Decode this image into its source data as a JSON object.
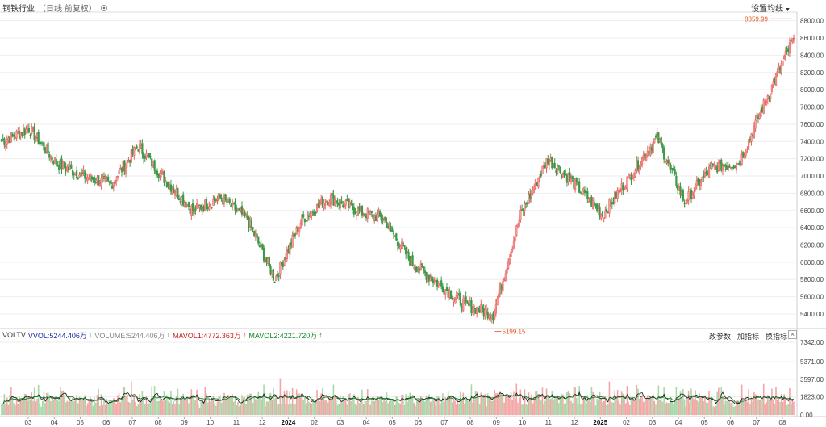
{
  "header": {
    "title": "钢铁行业",
    "subtitle": "（日线 前复权）",
    "ma_settings_label": "设置均线"
  },
  "volume_panel": {
    "indicator": "VOLTV",
    "vvol": "VVOL:5244.406万",
    "vvol_arrow": "↓",
    "volume": "VOLUME:5244.406万",
    "volume_arrow": "↓",
    "mavol1": "MAVOL1:4772.363万",
    "mavol1_arrow": "↑",
    "mavol2": "MAVOL2:4221.720万",
    "mavol2_arrow": "↑",
    "buttons": [
      "改参数",
      "加指标",
      "换指标"
    ],
    "close_label": "×"
  },
  "colors": {
    "up": "#e8625f",
    "down": "#3a9a48",
    "up_fill": "#f4a6a6",
    "down_fill": "#a8d8a8",
    "mavol1": "#222222",
    "mavol2": "#1a7a2a",
    "annotation": "#e8531a",
    "vvol_label": "#1a2a9a",
    "mavol1_label": "#c81e1e",
    "mavol2_label": "#1a8a2a"
  },
  "chart_data": [
    {
      "type": "candlestick",
      "title": "钢铁行业（日线 前复权）",
      "ylim": [
        5250,
        8900
      ],
      "y_ticks": [
        "5400.00",
        "5600.00",
        "5800.00",
        "6000.00",
        "6200.00",
        "6400.00",
        "6600.00",
        "6800.00",
        "7000.00",
        "7200.00",
        "7400.00",
        "7600.00",
        "7800.00",
        "8000.00",
        "8200.00",
        "8400.00",
        "8600.00",
        "8800.00"
      ],
      "x_ticks": [
        "03",
        "04",
        "05",
        "06",
        "07",
        "08",
        "09",
        "10",
        "11",
        "12",
        "2024",
        "02",
        "03",
        "04",
        "05",
        "06",
        "07",
        "08",
        "09",
        "10",
        "11",
        "12",
        "2025",
        "02",
        "03",
        "04",
        "05",
        "06",
        "07",
        "08"
      ],
      "annotations": [
        {
          "label": "8859.99",
          "value": 8859.99,
          "type": "high"
        },
        {
          "label": "5199.15",
          "value": 5199.15,
          "type": "low"
        }
      ],
      "approx_close_by_month": [
        {
          "month": "03",
          "close": 7400
        },
        {
          "month": "04",
          "close": 7550
        },
        {
          "month": "05",
          "close": 7150
        },
        {
          "month": "06",
          "close": 7000
        },
        {
          "month": "07",
          "close": 6900
        },
        {
          "month": "08",
          "close": 7350
        },
        {
          "month": "09",
          "close": 6950
        },
        {
          "month": "10",
          "close": 6600
        },
        {
          "month": "11",
          "close": 6750
        },
        {
          "month": "12",
          "close": 6500
        },
        {
          "month": "2024",
          "close": 5800
        },
        {
          "month": "02",
          "close": 6500
        },
        {
          "month": "03",
          "close": 6750
        },
        {
          "month": "04",
          "close": 6600
        },
        {
          "month": "05",
          "close": 6500
        },
        {
          "month": "06",
          "close": 6000
        },
        {
          "month": "07",
          "close": 5750
        },
        {
          "month": "08",
          "close": 5500
        },
        {
          "month": "09",
          "close": 5400
        },
        {
          "month": "10",
          "close": 6550
        },
        {
          "month": "11",
          "close": 7200
        },
        {
          "month": "12",
          "close": 6900
        },
        {
          "month": "2025",
          "close": 6550
        },
        {
          "month": "02",
          "close": 7000
        },
        {
          "month": "03",
          "close": 7450
        },
        {
          "month": "04",
          "close": 6700
        },
        {
          "month": "05",
          "close": 7100
        },
        {
          "month": "06",
          "close": 7150
        },
        {
          "month": "07",
          "close": 7900
        },
        {
          "month": "08",
          "close": 8600
        }
      ]
    },
    {
      "type": "bar",
      "title": "VOLTV",
      "ylim": [
        0,
        7342
      ],
      "y_ticks": [
        "0.00",
        "1823.00",
        "3597.00",
        "5371.00",
        "7342.00"
      ],
      "series_names": [
        "MAVOL1",
        "MAVOL2"
      ]
    }
  ]
}
